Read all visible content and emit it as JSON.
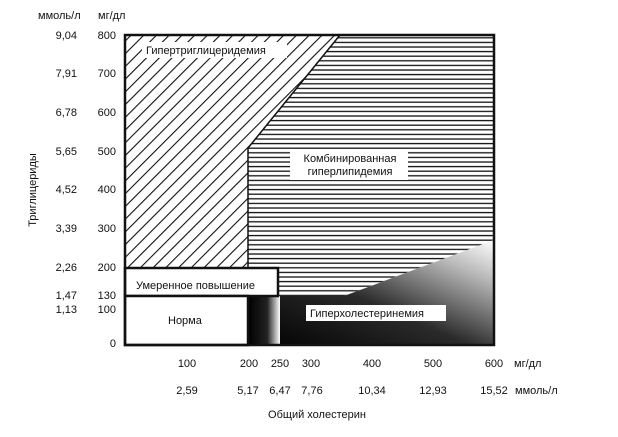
{
  "chart": {
    "y_unit_left": "ммоль/л",
    "y_unit_right": "мг/дл",
    "y_axis_title": "Триглицериды",
    "x_axis_title": "Общий холестерин",
    "x_unit_top": "мг/дл",
    "x_unit_bottom": "ммоль/л",
    "y_ticks_mgdl": [
      "800",
      "700",
      "600",
      "500",
      "400",
      "300",
      "200",
      "130",
      "100",
      "0"
    ],
    "y_ticks_mmol": [
      "9,04",
      "7,91",
      "6,78",
      "5,65",
      "4,52",
      "3,39",
      "2,26",
      "1,47",
      "1,13"
    ],
    "x_ticks_mgdl": [
      "100",
      "200",
      "250",
      "300",
      "400",
      "500",
      "600"
    ],
    "x_ticks_mmol": [
      "2,59",
      "5,17",
      "6,47",
      "7,76",
      "10,34",
      "12,93",
      "15,52"
    ]
  },
  "regions": {
    "hypertriglyceridemia": "Гипертриглицеридемия",
    "combined_line1": "Комбинированная",
    "combined_line2": "гиперлипидемия",
    "moderate_increase": "Умеренное повышение",
    "norm": "Норма",
    "hypercholesterolemia": "Гиперхолестеринемия"
  },
  "colors": {
    "ink": "#111111",
    "background": "#ffffff"
  }
}
